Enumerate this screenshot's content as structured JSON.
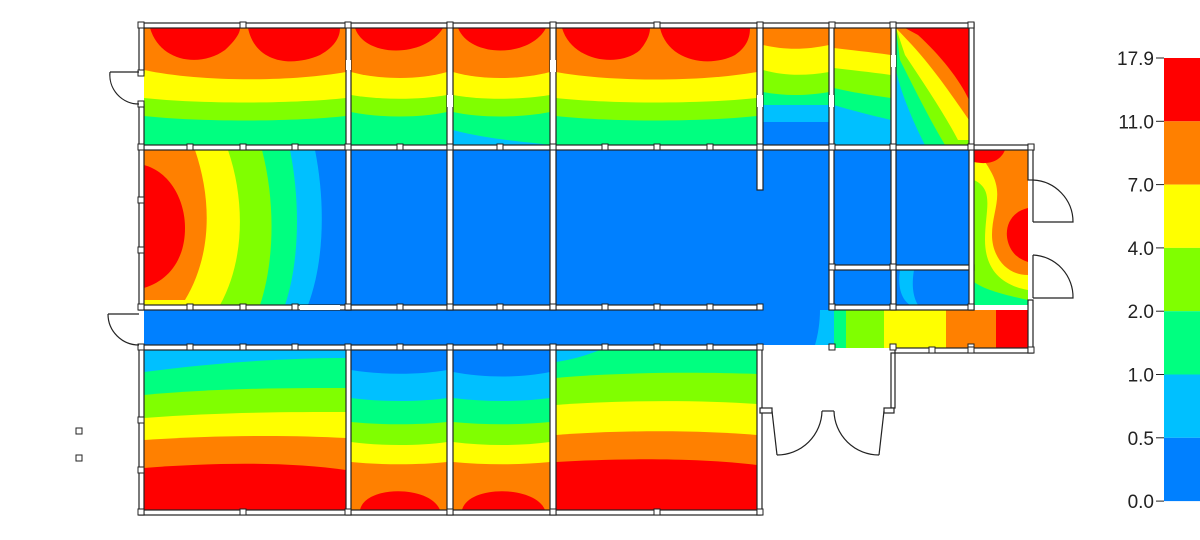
{
  "legend": {
    "ticks": [
      "17.9",
      "11.0",
      "7.0",
      "4.0",
      "2.0",
      "1.0",
      "0.5",
      "0.0"
    ],
    "colors": [
      "#ff0000",
      "#ff8000",
      "#ffff00",
      "#80ff00",
      "#00ff80",
      "#00c0ff",
      "#0080ff"
    ]
  },
  "palette": {
    "red": "#ff0000",
    "orange": "#ff8000",
    "yellow": "#ffff00",
    "lime": "#80ff00",
    "green": "#00ff80",
    "cyan": "#00c0ff",
    "blue": "#0080ff"
  }
}
